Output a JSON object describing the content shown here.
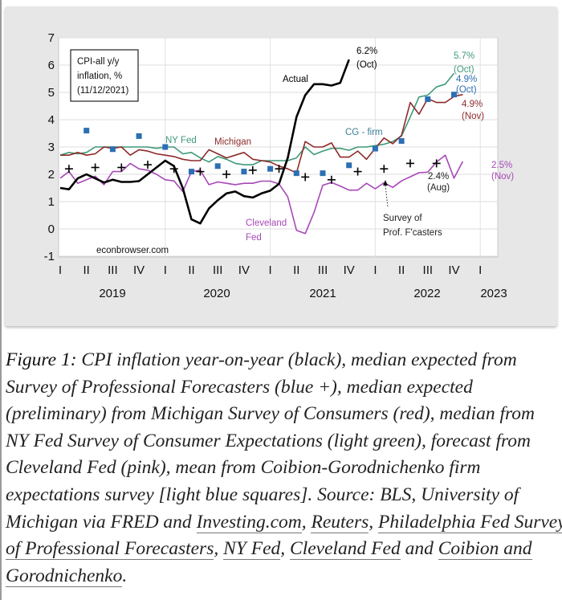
{
  "chart_data": {
    "type": "line",
    "title_box": [
      "CPI-all y/y",
      "inflation, %",
      "(11/12/2021)"
    ],
    "watermark": "econbrowser.com",
    "ylim": [
      -1,
      7
    ],
    "yticks": [
      "7",
      "6",
      "5",
      "4",
      "3",
      "2",
      "1",
      "0",
      "-1"
    ],
    "quarter_ticks": [
      "I",
      "II",
      "III",
      "IV",
      "I",
      "II",
      "III",
      "IV",
      "I",
      "II",
      "III",
      "IV",
      "I",
      "II",
      "III",
      "IV",
      "I"
    ],
    "year_labels": [
      "2019",
      "2020",
      "2021",
      "2022",
      "2023"
    ],
    "grid": true,
    "x": [
      "2019-01",
      "2019-02",
      "2019-03",
      "2019-04",
      "2019-05",
      "2019-06",
      "2019-07",
      "2019-08",
      "2019-09",
      "2019-10",
      "2019-11",
      "2019-12",
      "2020-01",
      "2020-02",
      "2020-03",
      "2020-04",
      "2020-05",
      "2020-06",
      "2020-07",
      "2020-08",
      "2020-09",
      "2020-10",
      "2020-11",
      "2020-12",
      "2021-01",
      "2021-02",
      "2021-03",
      "2021-04",
      "2021-05",
      "2021-06",
      "2021-07",
      "2021-08",
      "2021-09",
      "2021-10",
      "2021-11",
      "2021-12",
      "2022-01",
      "2022-02",
      "2022-03",
      "2022-04",
      "2022-05",
      "2022-06",
      "2022-07",
      "2022-08",
      "2022-09",
      "2022-10",
      "2022-11"
    ],
    "series": [
      {
        "name": "Actual",
        "color": "#000000",
        "style": "line",
        "values": [
          1.5,
          1.45,
          1.85,
          2.0,
          1.85,
          1.7,
          1.8,
          1.72,
          1.72,
          1.75,
          2.0,
          2.25,
          2.5,
          2.3,
          1.5,
          0.35,
          0.2,
          0.75,
          1.05,
          1.3,
          1.37,
          1.2,
          1.15,
          1.3,
          1.4,
          1.65,
          2.6,
          4.1,
          4.9,
          5.3,
          5.3,
          5.25,
          5.35,
          6.2,
          null,
          null,
          null,
          null,
          null,
          null,
          null,
          null,
          null,
          null,
          null,
          null,
          null
        ]
      },
      {
        "name": "Michigan",
        "color": "#8e2a2a",
        "style": "line",
        "values": [
          2.7,
          2.7,
          2.8,
          2.7,
          2.75,
          3.0,
          2.95,
          3.0,
          2.7,
          2.9,
          2.85,
          2.75,
          2.7,
          2.65,
          2.55,
          2.5,
          2.5,
          2.9,
          2.75,
          2.6,
          2.7,
          2.8,
          2.55,
          2.5,
          2.45,
          2.3,
          2.2,
          2.05,
          3.2,
          3.0,
          3.0,
          3.15,
          2.63,
          2.63,
          2.85,
          2.55,
          2.95,
          3.33,
          3.12,
          3.43,
          4.63,
          4.2,
          4.77,
          4.63,
          4.63,
          4.85,
          4.92
        ]
      },
      {
        "name": "NY Fed",
        "color": "#3f9a78",
        "style": "line",
        "values": [
          2.7,
          2.8,
          2.75,
          2.8,
          3.0,
          3.0,
          3.0,
          3.0,
          3.0,
          3.0,
          3.0,
          2.95,
          3.0,
          3.0,
          2.75,
          2.8,
          2.6,
          2.45,
          2.65,
          2.55,
          2.4,
          2.35,
          2.35,
          2.5,
          2.5,
          2.5,
          2.5,
          2.6,
          3.0,
          2.72,
          2.85,
          2.95,
          2.95,
          2.88,
          3.0,
          3.0,
          3.05,
          3.1,
          3.2,
          3.4,
          4.1,
          4.83,
          4.9,
          5.2,
          5.3,
          5.7,
          null
        ]
      },
      {
        "name": "Cleveland Fed",
        "color": "#a848b8",
        "style": "line",
        "values": [
          1.86,
          2.1,
          1.67,
          1.8,
          1.93,
          1.62,
          2.1,
          2.1,
          2.4,
          2.2,
          2.15,
          2.0,
          1.8,
          1.76,
          1.37,
          2.1,
          2.15,
          1.62,
          1.72,
          1.67,
          1.62,
          1.67,
          1.67,
          1.75,
          1.75,
          1.65,
          1.18,
          -0.05,
          -0.17,
          0.6,
          1.6,
          1.7,
          1.57,
          1.42,
          1.42,
          1.67,
          1.47,
          1.69,
          1.52,
          1.76,
          1.91,
          2.06,
          2.08,
          2.45,
          2.7,
          1.86,
          2.47
        ]
      }
    ],
    "points": [
      {
        "name": "Survey of Prof. F'casters",
        "color": "#000000",
        "marker": "plus",
        "x": [
          "2019-02",
          "2019-05",
          "2019-08",
          "2019-11",
          "2020-02",
          "2020-05",
          "2020-08",
          "2020-11",
          "2021-02",
          "2021-05",
          "2021-08",
          "2021-11",
          "2022-02",
          "2022-05",
          "2022-08"
        ],
        "values": [
          2.2,
          2.25,
          2.25,
          2.35,
          2.2,
          2.1,
          2.0,
          2.15,
          2.2,
          1.9,
          1.8,
          2.1,
          2.2,
          2.4,
          2.4
        ]
      },
      {
        "name": "CG - firm",
        "color": "#2c6fb3",
        "marker": "square",
        "x": [
          "2019-04",
          "2019-07",
          "2019-10",
          "2020-01",
          "2020-04",
          "2020-07",
          "2020-10",
          "2021-01",
          "2021-04",
          "2021-07",
          "2021-10",
          "2022-01",
          "2022-04",
          "2022-07",
          "2022-10"
        ],
        "values": [
          3.6,
          2.92,
          3.4,
          3.0,
          2.1,
          2.3,
          2.1,
          2.2,
          2.04,
          2.04,
          2.33,
          2.94,
          3.22,
          4.75,
          4.92
        ]
      }
    ],
    "annotations": {
      "actual": "Actual",
      "actual_last": [
        "6.2%",
        "(Oct)"
      ],
      "nyfed": "NY Fed",
      "nyfed_last": [
        "5.7%",
        "(Oct)"
      ],
      "michigan": "Michigan",
      "michigan_last": [
        "4.9%",
        "(Nov)"
      ],
      "cg": "CG - firm",
      "cg_last": [
        "4.9%",
        "(Oct)"
      ],
      "cleveland": [
        "Cleveland",
        "Fed"
      ],
      "cleveland_last": [
        "2.5%",
        "(Nov)"
      ],
      "spf_last": [
        "2.4%",
        "(Aug)"
      ],
      "spf": [
        "Survey of",
        "Prof. F'casters"
      ]
    }
  },
  "caption": {
    "lines": [
      [
        {
          "text": "Figure 1:",
          "fig": true
        },
        {
          "text": " CPI inflation year-on-year (black), median expected from"
        }
      ],
      [
        {
          "text": "Survey of Professional Forecasters (blue +), median expected"
        }
      ],
      [
        {
          "text": "(preliminary) from Michigan Survey of Consumers (red), median from"
        }
      ],
      [
        {
          "text": "NY Fed Survey of Consumer Expectations (light green), forecast from"
        }
      ],
      [
        {
          "text": "Cleveland Fed (pink), mean from Coibion-Gorodnichenko firm"
        }
      ],
      [
        {
          "text": "expectations survey [light blue squares]. Source: BLS, University of"
        }
      ],
      [
        {
          "text": "Michigan via FRED and "
        },
        {
          "text": "Investing.com",
          "link": true
        },
        {
          "text": ", "
        },
        {
          "text": "Reuters",
          "link": true
        },
        {
          "text": ", "
        },
        {
          "text": "Philadelphia Fed Survey",
          "link": true
        }
      ],
      [
        {
          "text": "of Professional Forecasters",
          "link": true
        },
        {
          "text": ", "
        },
        {
          "text": "NY Fed",
          "link": true
        },
        {
          "text": ", "
        },
        {
          "text": "Cleveland Fed",
          "link": true
        },
        {
          "text": " and "
        },
        {
          "text": "Coibion and",
          "link": true
        }
      ],
      [
        {
          "text": "Gorodnichenko",
          "link": true
        },
        {
          "text": "."
        }
      ]
    ]
  }
}
